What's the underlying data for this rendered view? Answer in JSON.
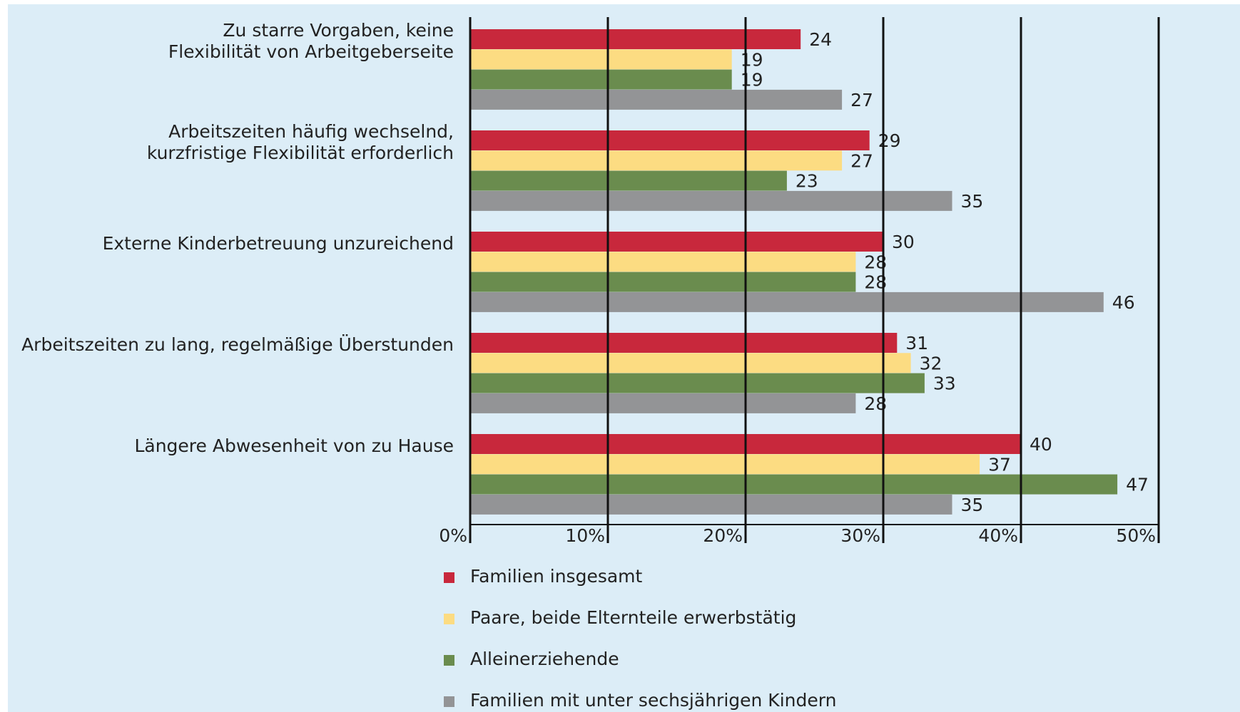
{
  "chart_data": {
    "type": "bar",
    "orientation": "horizontal",
    "categories": [
      "Zu starre Vorgaben, keine\nFlexibilität von Arbeitgeberseite",
      "Arbeitszeiten häufig wechselnd,\nkurzfristige Flexibilität erforderlich",
      "Externe Kinderbetreuung unzureichend",
      "Arbeitszeiten zu lang, regelmäßige Überstunden",
      "Längere Abwesenheit von zu Hause"
    ],
    "series": [
      {
        "name": "Familien insgesamt",
        "color": "#c8283c",
        "values": [
          24,
          29,
          30,
          31,
          40
        ]
      },
      {
        "name": "Paare, beide Elternteile erwerbstätig",
        "color": "#fcdc82",
        "values": [
          19,
          27,
          28,
          32,
          37
        ]
      },
      {
        "name": "Alleinerziehende",
        "color": "#6a8c4e",
        "values": [
          19,
          23,
          28,
          33,
          47
        ]
      },
      {
        "name": "Familien mit unter sechsjährigen Kindern",
        "color": "#939496",
        "values": [
          27,
          35,
          46,
          28,
          35
        ]
      }
    ],
    "xlim": [
      0,
      50
    ],
    "xticks": [
      {
        "value": 0,
        "label": "0%"
      },
      {
        "value": 10,
        "label": "10%"
      },
      {
        "value": 20,
        "label": "20%"
      },
      {
        "value": 30,
        "label": "30%"
      },
      {
        "value": 40,
        "label": "40%"
      },
      {
        "value": 50,
        "label": "50%"
      }
    ],
    "grid": true
  }
}
